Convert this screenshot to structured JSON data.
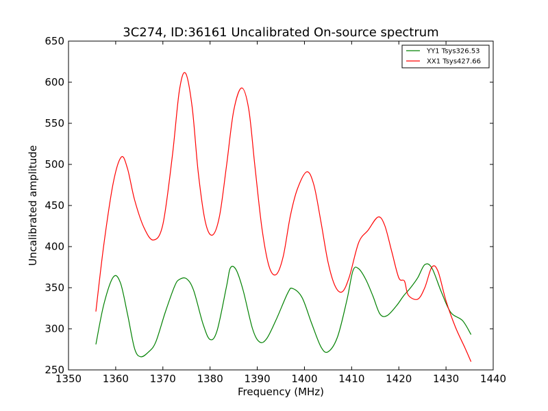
{
  "chart_data": {
    "type": "line",
    "title": "3C274, ID:36161 Uncalibrated On-source spectrum",
    "xlabel": "Frequency (MHz)",
    "ylabel": "Uncalibrated amplitude",
    "xlim": [
      1350,
      1440
    ],
    "ylim": [
      250,
      650
    ],
    "xticks": [
      "1350",
      "1360",
      "1370",
      "1380",
      "1390",
      "1400",
      "1410",
      "1420",
      "1430",
      "1440"
    ],
    "yticks": [
      "250",
      "300",
      "350",
      "400",
      "450",
      "500",
      "550",
      "600",
      "650"
    ],
    "grid": false,
    "legend_position": "top-right",
    "series": [
      {
        "name": "YY1 Tsys326.53",
        "color": "#008000",
        "x": [
          1355.8,
          1357.5,
          1359.5,
          1361,
          1362.5,
          1364,
          1365.3,
          1367,
          1368.5,
          1370.5,
          1372.5,
          1373.5,
          1375,
          1376.5,
          1378.5,
          1380,
          1381.5,
          1383.5,
          1384.3,
          1385.5,
          1387,
          1389,
          1390.5,
          1392,
          1394,
          1396.5,
          1397.5,
          1399.5,
          1401.5,
          1403.5,
          1405,
          1407,
          1409,
          1410.3,
          1411.5,
          1413,
          1414.5,
          1416,
          1417.5,
          1419.5,
          1421,
          1422.5,
          1424,
          1425.5,
          1427,
          1429,
          1431,
          1433.5,
          1435.3
        ],
        "values": [
          281,
          330,
          363,
          356,
          318,
          276,
          266,
          272,
          284,
          320,
          352,
          360,
          361,
          347,
          306,
          287,
          298,
          352,
          374,
          372,
          347,
          300,
          284,
          288,
          311,
          344,
          349,
          338,
          307,
          278,
          272,
          290,
          335,
          371,
          373,
          360,
          340,
          318,
          316,
          328,
          340,
          350,
          362,
          378,
          374,
          345,
          320,
          310,
          293
        ]
      },
      {
        "name": "XX1 Tsys427.66",
        "color": "#ff0000",
        "x": [
          1355.8,
          1357.5,
          1359.5,
          1361.2,
          1362.5,
          1364,
          1366,
          1368,
          1370,
          1372,
          1373.5,
          1374.8,
          1376.2,
          1377.5,
          1379,
          1380.5,
          1382,
          1383.5,
          1385,
          1386.7,
          1388.2,
          1389.5,
          1391,
          1392.5,
          1394,
          1395.5,
          1397,
          1398.5,
          1400.5,
          1402,
          1403.5,
          1405,
          1406.5,
          1408,
          1409.5,
          1411.5,
          1413.5,
          1415.6,
          1417,
          1418.5,
          1420,
          1421.2,
          1422,
          1424,
          1425.5,
          1427,
          1428.3,
          1430,
          1432,
          1434,
          1435.3
        ],
        "values": [
          321,
          403,
          478,
          509,
          495,
          457,
          423,
          408,
          427,
          510,
          590,
          611,
          570,
          490,
          430,
          414,
          437,
          499,
          565,
          593,
          567,
          498,
          422,
          376,
          366,
          388,
          437,
          470,
          491,
          475,
          430,
          381,
          352,
          345,
          363,
          405,
          420,
          436,
          426,
          394,
          362,
          358,
          341,
          336,
          350,
          375,
          370,
          334,
          302,
          277,
          260
        ]
      }
    ]
  }
}
